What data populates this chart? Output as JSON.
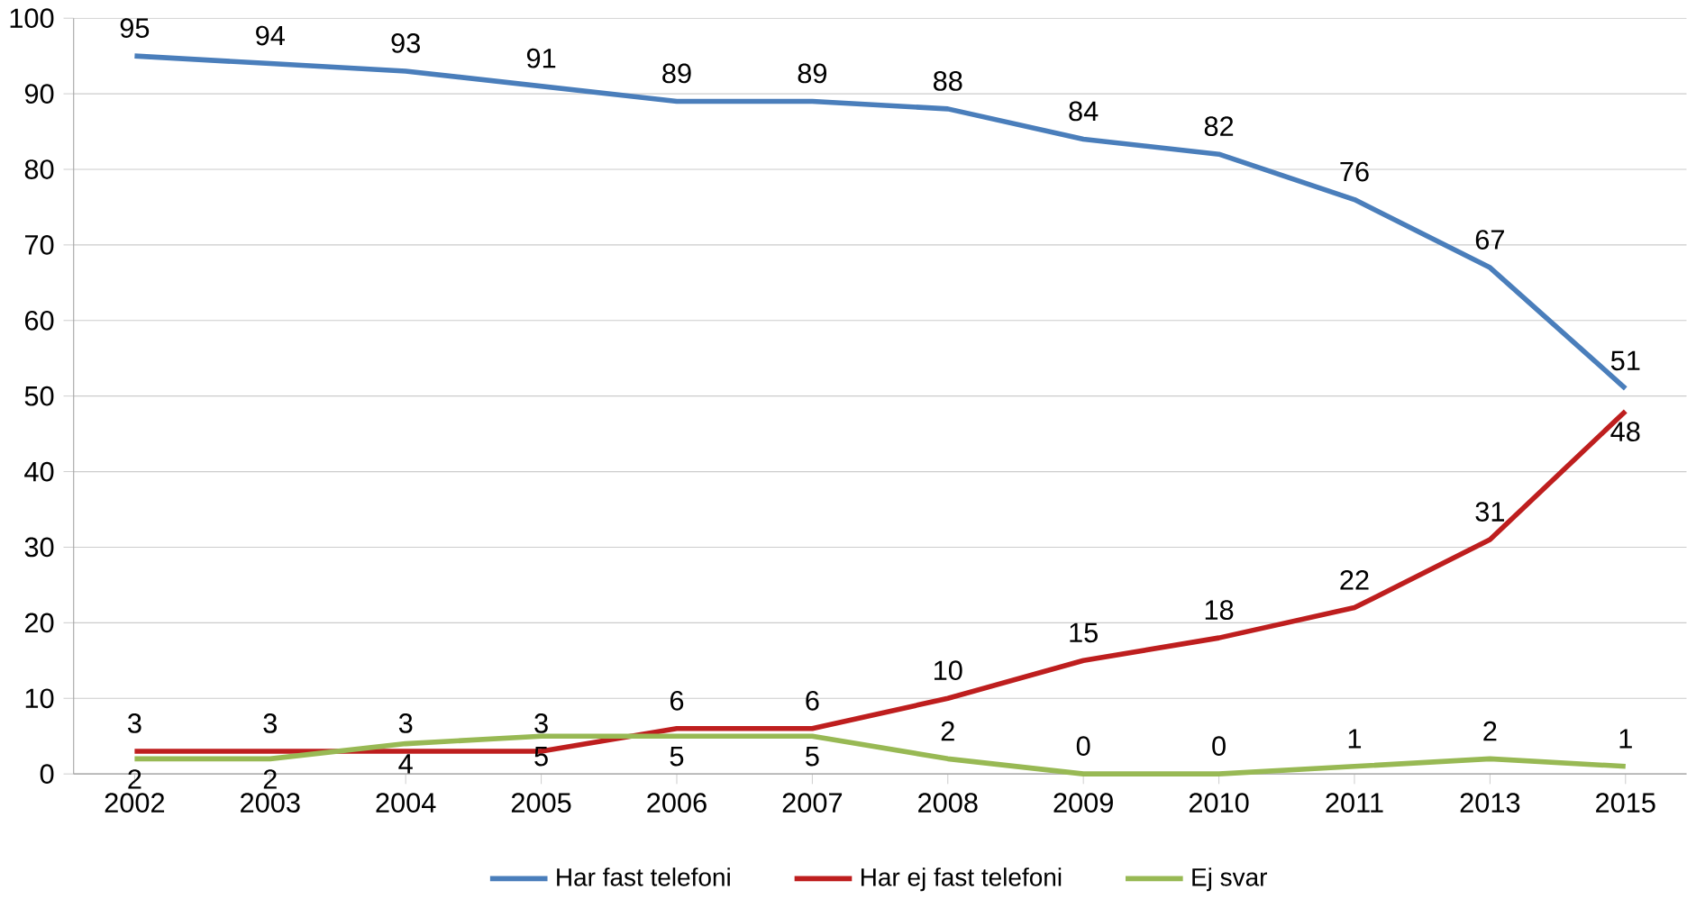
{
  "chart_data": {
    "type": "line",
    "categories": [
      "2002",
      "2003",
      "2004",
      "2005",
      "2006",
      "2007",
      "2008",
      "2009",
      "2010",
      "2011",
      "2013",
      "2015"
    ],
    "series": [
      {
        "name": "Har fast telefoni",
        "color": "#4a7ebb",
        "values": [
          95,
          94,
          93,
          91,
          89,
          89,
          88,
          84,
          82,
          76,
          67,
          51
        ]
      },
      {
        "name": "Har ej fast telefoni",
        "color": "#be1e1e",
        "values": [
          3,
          3,
          3,
          3,
          6,
          6,
          10,
          15,
          18,
          22,
          31,
          48
        ]
      },
      {
        "name": "Ej svar",
        "color": "#98b954",
        "values": [
          2,
          2,
          4,
          5,
          5,
          5,
          2,
          0,
          0,
          1,
          2,
          1
        ]
      }
    ],
    "ylim": [
      0,
      100
    ],
    "yticks": [
      0,
      10,
      20,
      30,
      40,
      50,
      60,
      70,
      80,
      90,
      100
    ],
    "grid": "y",
    "legend": "bottom",
    "data_labels": true,
    "marker": "none",
    "line_style": "solid"
  }
}
